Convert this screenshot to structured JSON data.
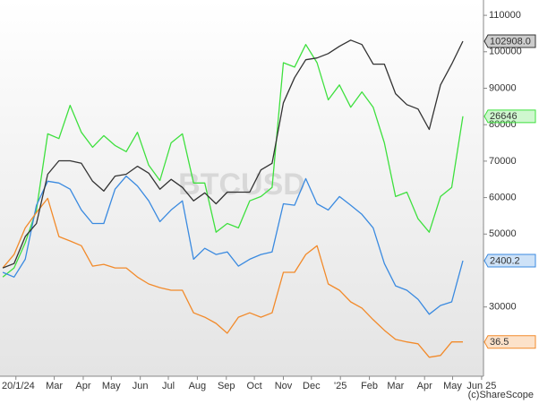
{
  "chart_data": {
    "type": "line",
    "watermark": "BTCUSD",
    "credit": "(c)ShareScope",
    "x": [
      -14,
      -2,
      10,
      22,
      34,
      46,
      58,
      70,
      82,
      94,
      106,
      118,
      130,
      142,
      154,
      166,
      178,
      190,
      202,
      214,
      226,
      238,
      250,
      262,
      274,
      286,
      298,
      310,
      322,
      334,
      346,
      358,
      370,
      382,
      394,
      406,
      418,
      430,
      442,
      454,
      466,
      478
    ],
    "xlim": [
      -17,
      500
    ],
    "xticks": [
      {
        "value": 0,
        "label": "20/1/24"
      },
      {
        "value": 41,
        "label": "Mar"
      },
      {
        "value": 72,
        "label": "Apr"
      },
      {
        "value": 102,
        "label": "May"
      },
      {
        "value": 133,
        "label": "Jun"
      },
      {
        "value": 163,
        "label": "Jul"
      },
      {
        "value": 194,
        "label": "Aug"
      },
      {
        "value": 225,
        "label": "Sep"
      },
      {
        "value": 255,
        "label": "Oct"
      },
      {
        "value": 286,
        "label": "Nov"
      },
      {
        "value": 316,
        "label": "Dec"
      },
      {
        "value": 347,
        "label": "'25"
      },
      {
        "value": 378,
        "label": "Feb"
      },
      {
        "value": 406,
        "label": "Mar"
      },
      {
        "value": 437,
        "label": "Apr"
      },
      {
        "value": 467,
        "label": "May"
      },
      {
        "value": 498,
        "label": "Jun 25"
      }
    ],
    "ylim": [
      11000,
      114200
    ],
    "yticks": [
      30000,
      50000,
      60000,
      70000,
      80000,
      90000,
      100000,
      110000
    ],
    "series": [
      {
        "color": "#3ee03e",
        "end_label": "26646",
        "values": [
          38200,
          40700,
          47600,
          56600,
          77500,
          76200,
          85300,
          77900,
          73800,
          77000,
          74300,
          72600,
          77900,
          68900,
          64700,
          75000,
          77500,
          64000,
          64000,
          50500,
          52900,
          51700,
          59100,
          60300,
          62800,
          97000,
          95800,
          102000,
          97000,
          86800,
          90900,
          84800,
          89000,
          84800,
          75000,
          60300,
          61500,
          54200,
          50500,
          60300,
          62800,
          82300
        ]
      },
      {
        "color": "#3a8ae0",
        "end_label": "2400.2",
        "values": [
          39500,
          38200,
          43100,
          57900,
          64500,
          64000,
          62300,
          56600,
          52900,
          52900,
          62300,
          65900,
          63200,
          59100,
          53400,
          56600,
          59100,
          43100,
          46100,
          44400,
          45100,
          41200,
          43100,
          44400,
          45100,
          58300,
          57900,
          65200,
          58300,
          56600,
          60300,
          57900,
          55400,
          51700,
          41900,
          35800,
          34600,
          32100,
          28000,
          30400,
          31400,
          42700
        ]
      },
      {
        "color": "#f28a2a",
        "end_label": "36.5",
        "values": [
          40700,
          44400,
          51700,
          55900,
          59800,
          49300,
          48100,
          46800,
          41200,
          41700,
          40700,
          40700,
          38200,
          36300,
          35300,
          34600,
          34600,
          28400,
          27200,
          25500,
          22800,
          27200,
          28400,
          27200,
          28400,
          39500,
          39500,
          44400,
          46800,
          36300,
          34600,
          31400,
          29700,
          26500,
          23600,
          21100,
          20400,
          19900,
          16200,
          16700,
          20400,
          20400
        ]
      },
      {
        "color": "#333333",
        "end_label": "102908.0",
        "values": [
          40700,
          41900,
          49300,
          52900,
          66400,
          70100,
          70100,
          69400,
          64500,
          61800,
          65900,
          66400,
          68600,
          66700,
          62300,
          65000,
          62800,
          59100,
          61300,
          58300,
          61500,
          61500,
          61500,
          67600,
          69400,
          86000,
          92900,
          97800,
          98300,
          99500,
          101500,
          103200,
          102000,
          96600,
          96600,
          88500,
          85500,
          84300,
          78700,
          90900,
          96600,
          102908
        ]
      }
    ]
  }
}
